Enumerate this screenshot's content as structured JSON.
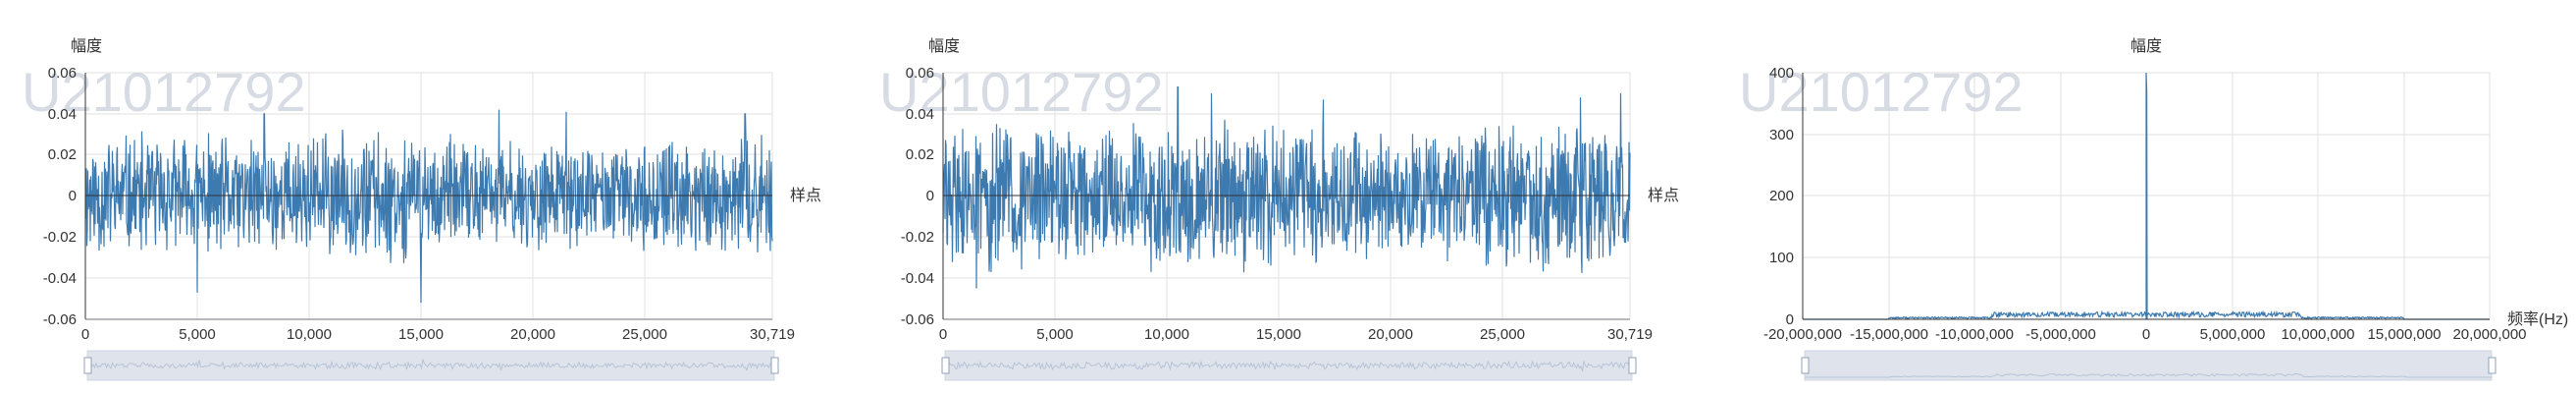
{
  "chart_data": [
    {
      "type": "line",
      "watermark": "U21012792",
      "ylabel": "幅度",
      "xlabel": "样点",
      "x_range": [
        0,
        30719
      ],
      "ylim": [
        -0.06,
        0.06
      ],
      "x_ticks": [
        "0",
        "5,000",
        "10,000",
        "15,000",
        "20,000",
        "25,000",
        "30,719"
      ],
      "x_tick_values": [
        0,
        5000,
        10000,
        15000,
        20000,
        25000,
        30719
      ],
      "y_ticks": [
        "0.06",
        "0.04",
        "0.02",
        "0",
        "-0.02",
        "-0.04",
        "-0.06"
      ],
      "y_tick_values": [
        0.06,
        0.04,
        0.02,
        0,
        -0.02,
        -0.04,
        -0.06
      ],
      "envelope_profile": [
        [
          0,
          0.031
        ],
        [
          2000,
          0.03
        ],
        [
          4000,
          0.029
        ],
        [
          6000,
          0.029
        ],
        [
          8000,
          0.027
        ],
        [
          10000,
          0.03
        ],
        [
          12000,
          0.032
        ],
        [
          14000,
          0.031
        ],
        [
          16000,
          0.028
        ],
        [
          18000,
          0.026
        ],
        [
          20000,
          0.027
        ],
        [
          22000,
          0.025
        ],
        [
          24000,
          0.024
        ],
        [
          26000,
          0.026
        ],
        [
          28000,
          0.028
        ],
        [
          30719,
          0.029
        ]
      ],
      "peaks": [
        [
          5000,
          -0.047
        ],
        [
          8000,
          0.04
        ],
        [
          15000,
          -0.052
        ],
        [
          18500,
          0.042
        ],
        [
          21500,
          0.041
        ],
        [
          29500,
          0.04
        ]
      ],
      "color": "#3d7ab0",
      "grid": true,
      "dataZoom": true
    },
    {
      "type": "line",
      "watermark": "U21012792",
      "ylabel": "幅度",
      "xlabel": "样点",
      "x_range": [
        0,
        30719
      ],
      "ylim": [
        -0.06,
        0.06
      ],
      "x_ticks": [
        "0",
        "5,000",
        "10,000",
        "15,000",
        "20,000",
        "25,000",
        "30,719"
      ],
      "x_tick_values": [
        0,
        5000,
        10000,
        15000,
        20000,
        25000,
        30719
      ],
      "y_ticks": [
        "0.06",
        "0.04",
        "0.02",
        "0",
        "-0.02",
        "-0.04",
        "-0.06"
      ],
      "y_tick_values": [
        0.06,
        0.04,
        0.02,
        0,
        -0.02,
        -0.04,
        -0.06
      ],
      "envelope_profile": [
        [
          0,
          0.034
        ],
        [
          2000,
          0.036
        ],
        [
          4000,
          0.036
        ],
        [
          6000,
          0.035
        ],
        [
          8000,
          0.034
        ],
        [
          10000,
          0.036
        ],
        [
          12000,
          0.035
        ],
        [
          14000,
          0.034
        ],
        [
          16000,
          0.035
        ],
        [
          18000,
          0.033
        ],
        [
          20000,
          0.031
        ],
        [
          22000,
          0.032
        ],
        [
          24000,
          0.034
        ],
        [
          26000,
          0.036
        ],
        [
          28000,
          0.037
        ],
        [
          30719,
          0.036
        ]
      ],
      "peaks": [
        [
          1500,
          -0.045
        ],
        [
          10500,
          0.053
        ],
        [
          12000,
          0.05
        ],
        [
          17000,
          0.047
        ],
        [
          28500,
          0.048
        ],
        [
          30300,
          0.05
        ]
      ],
      "color": "#3d7ab0",
      "grid": true,
      "dataZoom": true
    },
    {
      "type": "line",
      "watermark": "U21012792",
      "ylabel": "幅度",
      "xlabel": "频率(Hz)",
      "x_range": [
        -20000000,
        20000000
      ],
      "ylim": [
        0,
        400
      ],
      "x_ticks": [
        "-20,000,000",
        "-15,000,000",
        "-10,000,000",
        "-5,000,000",
        "0",
        "5,000,000",
        "10,000,000",
        "15,000,000",
        "20,000,000"
      ],
      "x_tick_values": [
        -20000000,
        -15000000,
        -10000000,
        -5000000,
        0,
        5000000,
        10000000,
        15000000,
        20000000
      ],
      "y_ticks": [
        "400",
        "300",
        "200",
        "100",
        "0"
      ],
      "y_tick_values": [
        400,
        300,
        200,
        100,
        0
      ],
      "spectrum_bands": [
        {
          "from": -15000000,
          "to": -9000000,
          "level": 3
        },
        {
          "from": -9000000,
          "to": 9000000,
          "level": 9
        },
        {
          "from": 9000000,
          "to": 15000000,
          "level": 3
        }
      ],
      "center_peak": {
        "x": 0,
        "y": 400,
        "shoulder": 370
      },
      "color": "#3d7ab0",
      "grid": true,
      "dataZoom": true
    }
  ]
}
